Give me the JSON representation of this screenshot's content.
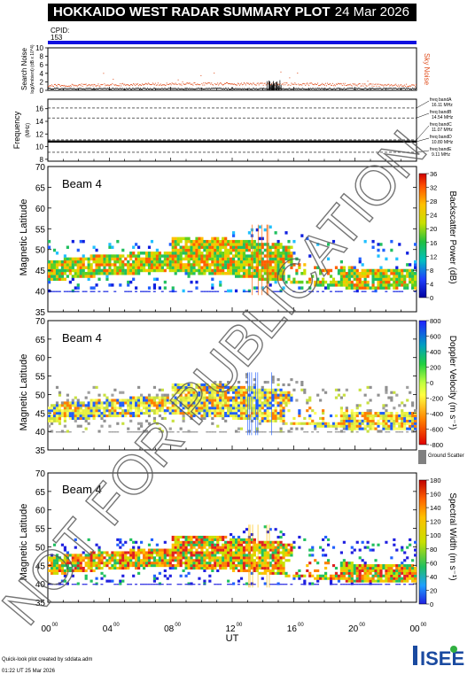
{
  "header": {
    "title": "HOKKAIDO WEST RADAR SUMMARY PLOT",
    "date": "24 Mar 2026"
  },
  "cpid": {
    "label": "CPID:",
    "value": "153"
  },
  "watermark": "NOT FOR PUBLICATION",
  "footer": {
    "line1": "Quick-look plot created by sddata.adm",
    "line2": "01:22 UT 25 Mar 2026",
    "logo": "ISEE"
  },
  "chart_data": [
    {
      "type": "line",
      "id": "search-noise",
      "ylabel": "Search Noise",
      "ysublabel": "log(Ambient) (dB x 10^4)",
      "right_label": "Sky Noise",
      "ylim": [
        0,
        10
      ],
      "yticks": [
        0,
        2,
        4,
        6,
        8,
        10
      ],
      "baseline_level": 1.2,
      "right_label_color": "#e05020"
    },
    {
      "type": "line",
      "id": "frequency",
      "ylabel": "Frequency",
      "yunit": "(MHz)",
      "ylim": [
        7.7,
        17.5
      ],
      "yticks": [
        8,
        10,
        12,
        14,
        16
      ],
      "bands": [
        {
          "name": "freq bandA",
          "freq": "16.11 MHz",
          "value": 16.11
        },
        {
          "name": "freq bandB",
          "freq": "14.54 MHz",
          "value": 14.54
        },
        {
          "name": "freq bandC",
          "freq": "11.07 MHz",
          "value": 11.07
        },
        {
          "name": "freq bandD",
          "freq": "10.80 MHz",
          "value": 10.8
        },
        {
          "name": "freq bandE",
          "freq": "9.11 MHz",
          "value": 9.11
        }
      ],
      "operating_freq": 10.8
    },
    {
      "type": "heatmap",
      "id": "power",
      "beam_label": "Beam  4",
      "ylabel": "Magnetic Latitude",
      "ylim": [
        35,
        70
      ],
      "yticks": [
        35,
        40,
        45,
        50,
        55,
        60,
        65,
        70
      ],
      "colorbar_label": "Backscatter Power (dB)",
      "colorbar_ticks": [
        "0",
        "4",
        "8",
        "12",
        "16",
        "20",
        "24",
        "28",
        "32",
        "36"
      ]
    },
    {
      "type": "heatmap",
      "id": "velocity",
      "beam_label": "Beam  4",
      "ylabel": "Magnetic Latitude",
      "ylim": [
        35,
        70
      ],
      "yticks": [
        35,
        40,
        45,
        50,
        55,
        60,
        65,
        70
      ],
      "colorbar_label": "Doppler Velocity (m s⁻¹)",
      "colorbar_ticks": [
        "-800",
        "-600",
        "-400",
        "-200",
        "0",
        "200",
        "400",
        "600",
        "800"
      ],
      "ground_scatter_label": "Ground Scatter"
    },
    {
      "type": "heatmap",
      "id": "width",
      "beam_label": "Beam  4",
      "ylabel": "Magnetic Latitude",
      "ylim": [
        35,
        70
      ],
      "yticks": [
        35,
        40,
        45,
        50,
        55,
        60,
        65,
        70
      ],
      "colorbar_label": "Spectral Width (m s⁻¹)",
      "colorbar_ticks": [
        "0",
        "20",
        "40",
        "60",
        "80",
        "100",
        "120",
        "140",
        "160",
        "180"
      ]
    }
  ],
  "xaxis": {
    "xlabel": "UT",
    "ticks": [
      "00",
      "04",
      "08",
      "12",
      "16",
      "20",
      "00"
    ],
    "tick_sup": "00",
    "xlim": [
      0,
      24
    ]
  }
}
